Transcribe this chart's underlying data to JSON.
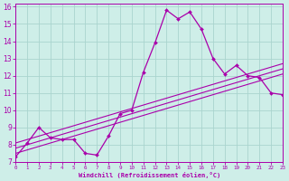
{
  "xlabel": "Windchill (Refroidissement éolien,°C)",
  "background_color": "#ceeee8",
  "grid_color": "#aad4ce",
  "line_color": "#aa00aa",
  "x_data": [
    0,
    1,
    2,
    3,
    4,
    5,
    6,
    7,
    8,
    9,
    10,
    11,
    12,
    13,
    14,
    15,
    16,
    17,
    18,
    19,
    20,
    21,
    22,
    23
  ],
  "y_main": [
    7.3,
    8.1,
    9.0,
    8.4,
    8.3,
    8.3,
    7.5,
    7.4,
    8.5,
    9.8,
    10.0,
    12.2,
    13.9,
    15.8,
    15.3,
    15.7,
    14.7,
    13.0,
    12.1,
    12.6,
    12.0,
    11.9,
    11.0,
    10.9
  ],
  "reg_line1": [
    7.5,
    7.7,
    7.9,
    8.1,
    8.3,
    8.5,
    8.7,
    8.9,
    9.1,
    9.3,
    9.5,
    9.7,
    9.9,
    10.1,
    10.3,
    10.5,
    10.7,
    10.9,
    11.1,
    11.3,
    11.5,
    11.7,
    11.9,
    12.1
  ],
  "reg_line2": [
    7.8,
    8.0,
    8.2,
    8.4,
    8.6,
    8.8,
    9.0,
    9.2,
    9.4,
    9.6,
    9.8,
    10.0,
    10.2,
    10.4,
    10.6,
    10.8,
    11.0,
    11.2,
    11.4,
    11.6,
    11.8,
    12.0,
    12.2,
    12.4
  ],
  "reg_line3": [
    8.1,
    8.3,
    8.5,
    8.7,
    8.9,
    9.1,
    9.3,
    9.5,
    9.7,
    9.9,
    10.1,
    10.3,
    10.5,
    10.7,
    10.9,
    11.1,
    11.3,
    11.5,
    11.7,
    11.9,
    12.1,
    12.3,
    12.5,
    12.7
  ],
  "xlim": [
    0,
    23
  ],
  "ylim": [
    7,
    16.2
  ],
  "yticks": [
    7,
    8,
    9,
    10,
    11,
    12,
    13,
    14,
    15,
    16
  ],
  "xticks": [
    0,
    1,
    2,
    3,
    4,
    5,
    6,
    7,
    8,
    9,
    10,
    11,
    12,
    13,
    14,
    15,
    16,
    17,
    18,
    19,
    20,
    21,
    22,
    23
  ]
}
